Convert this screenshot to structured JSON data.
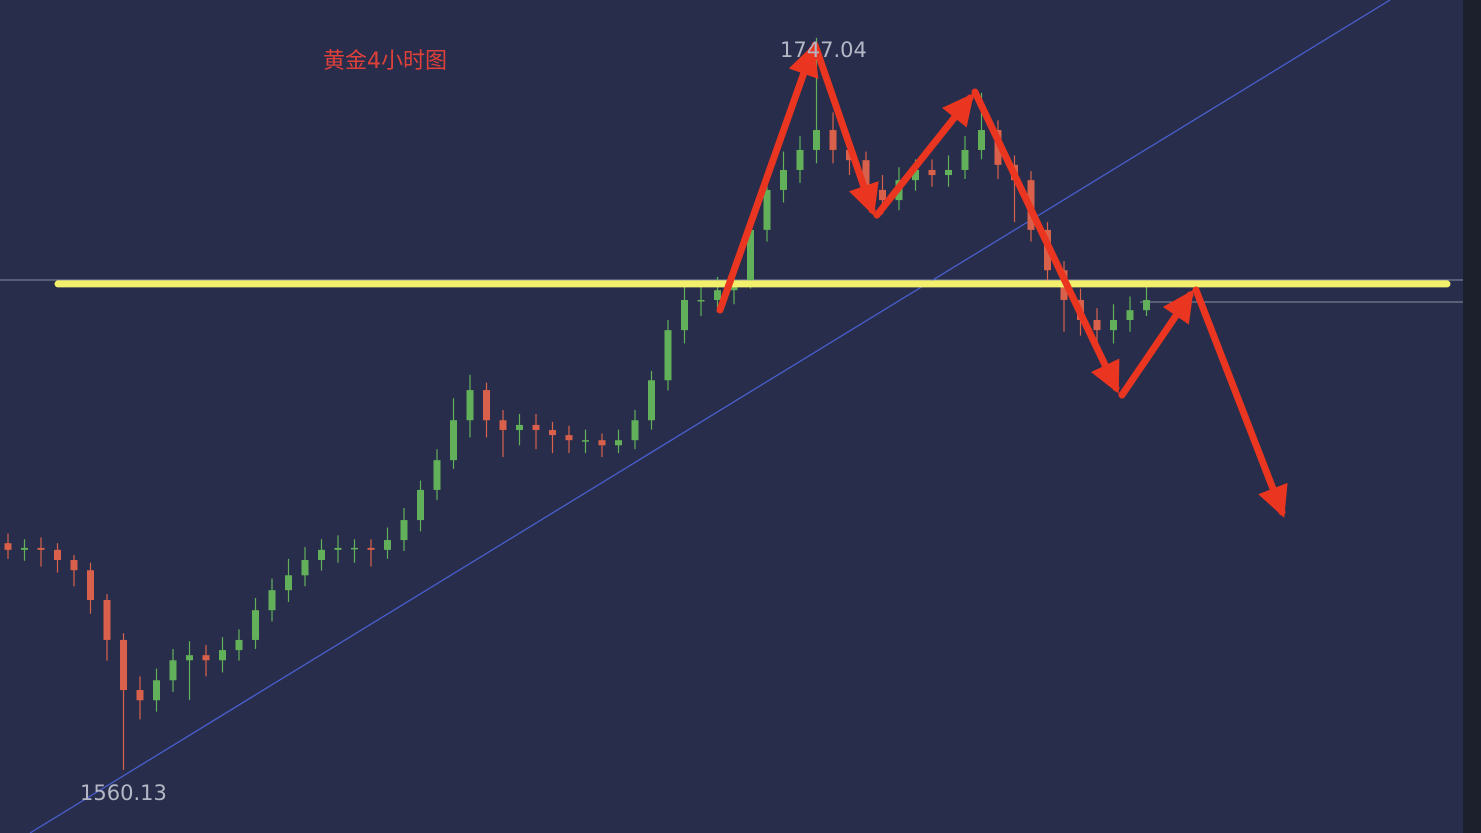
{
  "chart_data": {
    "type": "candlestick",
    "title": "黄金4小时图",
    "annotations": [
      "1747.04",
      "1560.13"
    ],
    "ylim": [
      1544.0,
      1756.7
    ],
    "level": 1684.2,
    "up_color": "#63b05a",
    "down_color": "#d9604a",
    "level_color": "#f2ef6c",
    "open": [
      1618.0,
      1616.3,
      1616.8,
      1616.3,
      1613.7,
      1611.1,
      1603.5,
      1593.3,
      1580.5,
      1577.9,
      1583.0,
      1588.1,
      1589.4,
      1588.1,
      1590.7,
      1593.3,
      1600.9,
      1606.0,
      1609.8,
      1613.7,
      1616.3,
      1616.8,
      1616.8,
      1616.3,
      1618.8,
      1623.9,
      1631.6,
      1639.2,
      1649.4,
      1657.1,
      1649.4,
      1646.9,
      1648.2,
      1646.9,
      1645.6,
      1644.3,
      1644.3,
      1643.0,
      1644.3,
      1649.4,
      1659.6,
      1672.4,
      1680.1,
      1680.1,
      1682.6,
      1685.2,
      1698.0,
      1708.2,
      1713.3,
      1718.4,
      1723.5,
      1718.4,
      1715.8,
      1708.2,
      1705.6,
      1710.7,
      1713.3,
      1712.0,
      1713.3,
      1718.4,
      1723.5,
      1714.6,
      1710.7,
      1698.0,
      1687.7,
      1680.1,
      1675.0,
      1672.4,
      1675.0,
      1677.5
    ],
    "high": [
      1620.5,
      1619.0,
      1619.5,
      1618.0,
      1615.0,
      1613.0,
      1605.0,
      1595.0,
      1584.0,
      1586.0,
      1591.0,
      1593.0,
      1592.0,
      1594.0,
      1596.0,
      1604.0,
      1609.0,
      1614.0,
      1617.0,
      1619.0,
      1620.0,
      1619.0,
      1619.0,
      1622.0,
      1627.0,
      1634.0,
      1642.0,
      1655.0,
      1661.0,
      1659.0,
      1652.0,
      1651.0,
      1651.0,
      1649.0,
      1648.0,
      1647.0,
      1646.0,
      1647.0,
      1652.0,
      1662.0,
      1675.0,
      1684.0,
      1684.0,
      1686.0,
      1689.0,
      1701.0,
      1712.0,
      1718.0,
      1722.0,
      1747.04,
      1728.0,
      1722.0,
      1718.0,
      1712.0,
      1714.0,
      1716.0,
      1716.0,
      1717.0,
      1722.0,
      1733.0,
      1726.0,
      1717.0,
      1713.0,
      1700.0,
      1690.0,
      1683.0,
      1678.0,
      1679.0,
      1681.0,
      1684.0
    ],
    "low": [
      1614.0,
      1613.5,
      1612.0,
      1610.5,
      1607.0,
      1600.0,
      1588.0,
      1560.13,
      1573.0,
      1575.0,
      1580.0,
      1578.0,
      1584.0,
      1585.0,
      1588.0,
      1591.0,
      1598.0,
      1603.0,
      1607.0,
      1611.0,
      1613.0,
      1613.0,
      1612.0,
      1614.0,
      1616.0,
      1621.0,
      1629.0,
      1637.0,
      1645.0,
      1645.0,
      1640.0,
      1643.0,
      1642.0,
      1641.0,
      1641.0,
      1641.0,
      1640.0,
      1641.0,
      1642.0,
      1647.0,
      1657.0,
      1669.0,
      1676.0,
      1677.0,
      1679.0,
      1683.0,
      1695.0,
      1705.0,
      1710.0,
      1715.0,
      1715.0,
      1712.0,
      1705.0,
      1702.0,
      1703.0,
      1708.0,
      1709.0,
      1709.0,
      1711.0,
      1716.0,
      1711.0,
      1700.0,
      1695.0,
      1684.0,
      1672.0,
      1671.0,
      1668.0,
      1669.0,
      1672.0,
      1676.0
    ],
    "close": [
      1616.3,
      1616.8,
      1616.3,
      1613.7,
      1611.1,
      1603.5,
      1593.3,
      1580.5,
      1577.9,
      1583.0,
      1588.1,
      1589.4,
      1588.1,
      1590.7,
      1593.3,
      1600.9,
      1606.0,
      1609.8,
      1613.7,
      1616.3,
      1616.8,
      1616.8,
      1616.3,
      1618.8,
      1623.9,
      1631.6,
      1639.2,
      1649.4,
      1657.1,
      1649.4,
      1646.9,
      1648.2,
      1646.9,
      1645.6,
      1644.3,
      1644.3,
      1643.0,
      1644.3,
      1649.4,
      1659.6,
      1672.4,
      1680.1,
      1680.1,
      1682.6,
      1685.2,
      1698.0,
      1708.2,
      1713.3,
      1718.4,
      1723.5,
      1718.4,
      1715.8,
      1708.2,
      1705.6,
      1710.7,
      1713.3,
      1712.0,
      1713.3,
      1718.4,
      1723.5,
      1714.6,
      1710.7,
      1698.0,
      1687.7,
      1680.1,
      1675.0,
      1672.4,
      1675.0,
      1677.5,
      1680.1
    ]
  }
}
